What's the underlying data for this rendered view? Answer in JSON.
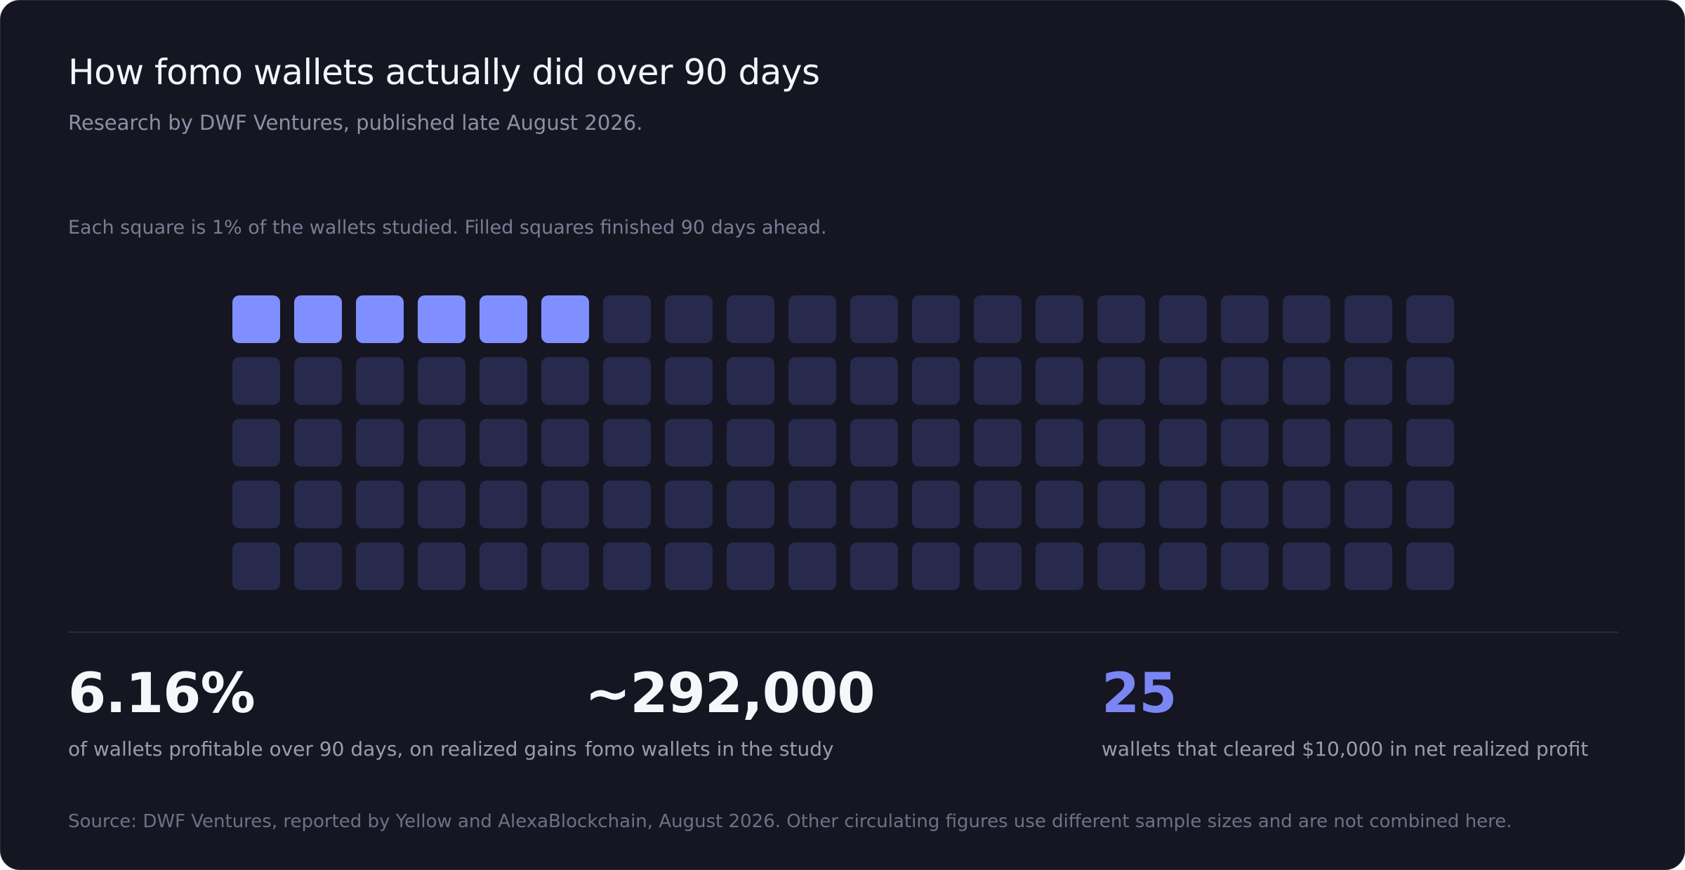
{
  "header": {
    "title": "How fomo wallets actually did over 90 days",
    "subtitle": "Research by DWF Ventures, published late August 2026."
  },
  "chart_note": "Each square is 1% of the wallets studied. Filled squares finished 90 days ahead.",
  "colors": {
    "background": "#161622",
    "filled_square": "#7f8fff",
    "empty_square": "#272a4c",
    "accent_stat": "#7b86f5"
  },
  "chart_data": {
    "type": "waffle",
    "total_squares": 100,
    "grid": {
      "rows": 5,
      "columns": 20
    },
    "unit": "1% of wallets studied",
    "filled_squares": 6,
    "empty_squares": 94,
    "title": "",
    "xlabel": "",
    "ylabel": ""
  },
  "stats": [
    {
      "value": "6.16%",
      "label": "of wallets profitable over 90 days, on realized gains",
      "accent": false
    },
    {
      "value": "~292,000",
      "label": "fomo wallets in the study",
      "accent": false
    },
    {
      "value": "25",
      "label": "wallets that cleared $10,000 in net realized profit",
      "accent": true
    }
  ],
  "footer": {
    "source": "Source: DWF Ventures, reported by Yellow and AlexaBlockchain, August 2026. Other circulating figures use different sample sizes and are not combined here."
  }
}
